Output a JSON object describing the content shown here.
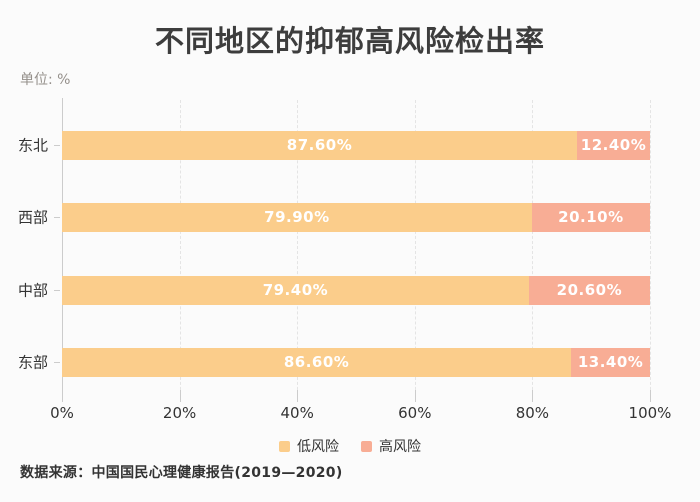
{
  "chart_data": {
    "type": "bar",
    "orientation": "horizontal",
    "stacked": true,
    "title": "不同地区的抑郁高风险检出率",
    "unit_label": "单位: %",
    "categories": [
      "东北",
      "西部",
      "中部",
      "东部"
    ],
    "series": [
      {
        "name": "低风险",
        "color": "#fbcd8b",
        "values": [
          87.6,
          79.9,
          79.4,
          86.6
        ],
        "labels": [
          "87.60%",
          "79.90%",
          "79.40%",
          "86.60%"
        ]
      },
      {
        "name": "高风险",
        "color": "#f8ad95",
        "values": [
          12.4,
          20.1,
          20.6,
          13.4
        ],
        "labels": [
          "12.40%",
          "20.10%",
          "20.60%",
          "13.40%"
        ]
      }
    ],
    "x_axis": {
      "min": 0,
      "max": 100,
      "tick_values": [
        0,
        20,
        40,
        60,
        80,
        100
      ],
      "tick_labels": [
        "0%",
        "20%",
        "40%",
        "60%",
        "80%",
        "100%"
      ],
      "grid": "dashed"
    },
    "legend": {
      "position": "bottom",
      "entries": [
        "低风险",
        "高风险"
      ]
    },
    "source": "数据来源：中国国民心理健康报告(2019—2020)"
  }
}
